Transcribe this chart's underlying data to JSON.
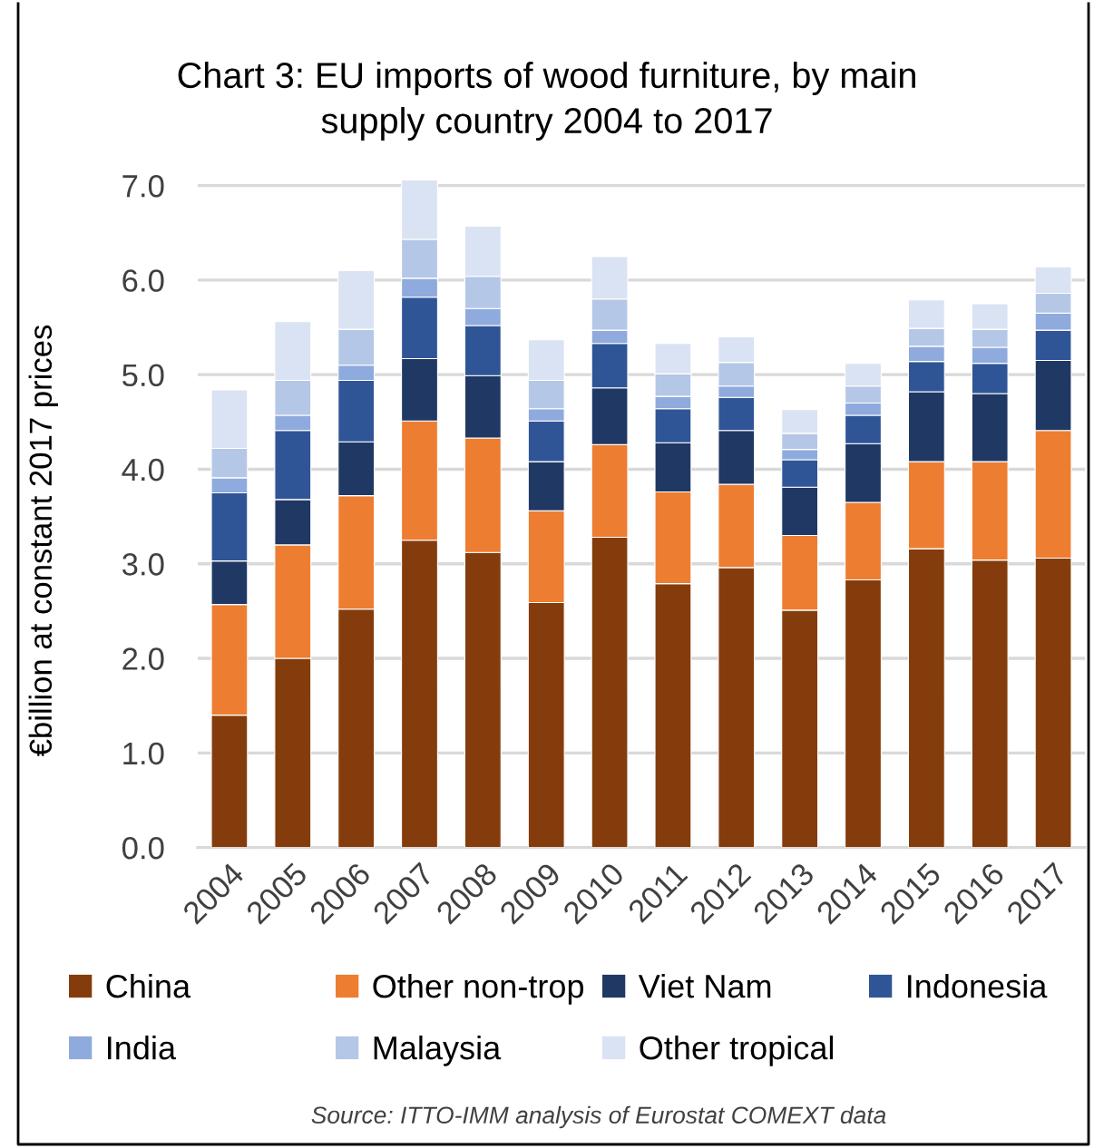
{
  "chart_data": {
    "type": "bar",
    "stacked": true,
    "title": "Chart 3: EU imports of wood furniture, by main\nsupply country 2004 to 2017",
    "ylabel": "€billion at constant 2017 prices",
    "categories": [
      "2004",
      "2005",
      "2006",
      "2007",
      "2008",
      "2009",
      "2010",
      "2011",
      "2012",
      "2013",
      "2014",
      "2015",
      "2016",
      "2017"
    ],
    "series": [
      {
        "name": "China",
        "color": "#843c0c",
        "values": [
          1.4,
          2.0,
          2.52,
          3.25,
          3.12,
          2.59,
          3.28,
          2.79,
          2.96,
          2.51,
          2.83,
          3.16,
          3.04,
          3.06
        ]
      },
      {
        "name": "Other non-trop",
        "color": "#ed7d31",
        "values": [
          1.17,
          1.2,
          1.2,
          1.26,
          1.21,
          0.97,
          0.98,
          0.97,
          0.88,
          0.79,
          0.82,
          0.92,
          1.04,
          1.35
        ]
      },
      {
        "name": "Viet Nam",
        "color": "#203864",
        "values": [
          0.46,
          0.48,
          0.57,
          0.66,
          0.66,
          0.52,
          0.6,
          0.52,
          0.57,
          0.51,
          0.62,
          0.74,
          0.72,
          0.74
        ]
      },
      {
        "name": "Indonesia",
        "color": "#2f5597",
        "values": [
          0.72,
          0.73,
          0.65,
          0.65,
          0.53,
          0.43,
          0.47,
          0.36,
          0.35,
          0.29,
          0.3,
          0.32,
          0.32,
          0.32
        ]
      },
      {
        "name": "India",
        "color": "#8faadc",
        "values": [
          0.16,
          0.16,
          0.16,
          0.2,
          0.18,
          0.13,
          0.14,
          0.13,
          0.12,
          0.11,
          0.13,
          0.16,
          0.17,
          0.18
        ]
      },
      {
        "name": "Malaysia",
        "color": "#b4c7e7",
        "values": [
          0.31,
          0.37,
          0.38,
          0.41,
          0.34,
          0.3,
          0.33,
          0.24,
          0.25,
          0.17,
          0.18,
          0.19,
          0.19,
          0.21
        ]
      },
      {
        "name": "Other tropical",
        "color": "#dae3f3",
        "values": [
          0.62,
          0.62,
          0.62,
          0.63,
          0.53,
          0.43,
          0.45,
          0.32,
          0.27,
          0.25,
          0.24,
          0.3,
          0.27,
          0.28
        ]
      }
    ],
    "ylim": [
      0,
      7.1
    ],
    "yticks": [
      {
        "value": 0,
        "label": "0.0"
      },
      {
        "value": 1,
        "label": "1.0"
      },
      {
        "value": 2,
        "label": "2.0"
      },
      {
        "value": 3,
        "label": "3.0"
      },
      {
        "value": 4,
        "label": "4.0"
      },
      {
        "value": 5,
        "label": "5.0"
      },
      {
        "value": 6,
        "label": "6.0"
      },
      {
        "value": 7,
        "label": "7.0"
      }
    ],
    "grid": "y",
    "legend": "bottom",
    "annotations": [
      "Source: ITTO-IMM analysis of Eurostat COMEXT data"
    ]
  }
}
